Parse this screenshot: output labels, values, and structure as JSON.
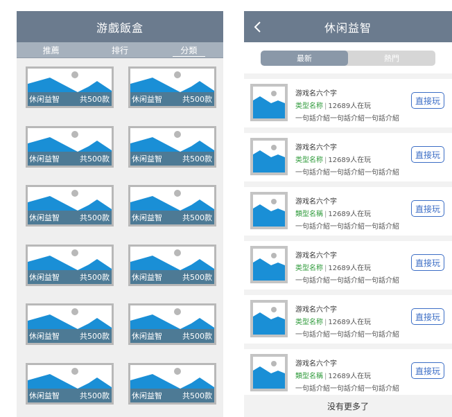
{
  "left": {
    "header_title": "游戲飯盒",
    "tabs": [
      {
        "label": "推薦",
        "active": false
      },
      {
        "label": "排行",
        "active": false
      },
      {
        "label": "分類",
        "active": true
      }
    ],
    "cards": [
      {
        "category": "休闲益智",
        "count": "共500款"
      },
      {
        "category": "休闲益智",
        "count": "共500款"
      },
      {
        "category": "休闲益智",
        "count": "共500款"
      },
      {
        "category": "休闲益智",
        "count": "共500款"
      },
      {
        "category": "休闲益智",
        "count": "共500款"
      },
      {
        "category": "休闲益智",
        "count": "共500款"
      },
      {
        "category": "休闲益智",
        "count": "共500款"
      },
      {
        "category": "休闲益智",
        "count": "共500款"
      },
      {
        "category": "休闲益智",
        "count": "共500款"
      },
      {
        "category": "休闲益智",
        "count": "共500款"
      },
      {
        "category": "休闲益智",
        "count": "共500款"
      },
      {
        "category": "休闲益智",
        "count": "共500款"
      }
    ],
    "card_icon": "image-placeholder-icon"
  },
  "right": {
    "header_title": "休闲益智",
    "back_icon": "chevron-left-icon",
    "segments": [
      {
        "label": "最新",
        "active": true
      },
      {
        "label": "熱門",
        "active": false
      }
    ],
    "items": [
      {
        "title": "游戏名六个字",
        "type": "类型名称",
        "players": "12689人在玩",
        "desc": "一句話介紹一句話介紹一句話介紹",
        "action": "直接玩"
      },
      {
        "title": "游戏名六个字",
        "type": "类型名称",
        "players": "12689人在玩",
        "desc": "一句話介紹一句話介紹一句話介紹",
        "action": "直接玩"
      },
      {
        "title": "游戏名六个字",
        "type": "類型名稱",
        "players": "12689人在玩",
        "desc": "一句話介紹一句話介紹一句話介紹",
        "action": "直接玩"
      },
      {
        "title": "游戏名六个字",
        "type": "类型名称",
        "players": "12689人在玩",
        "desc": "一句話介紹一句話介紹一句話介紹",
        "action": "直接玩"
      },
      {
        "title": "游戏名六个字",
        "type": "类型名称",
        "players": "12689人在玩",
        "desc": "一句話介紹一句話介紹一句話介紹",
        "action": "直接玩"
      },
      {
        "title": "游戏名六个字",
        "type": "類型名稱",
        "players": "12689人在玩",
        "desc": "一句話介紹一句話介紹一句話介紹",
        "action": "直接玩"
      }
    ],
    "footer_text": "没有更多了"
  },
  "colors": {
    "header_bg": "#6b7b8e",
    "tab_bg": "#a6b1bd",
    "image_blue": "#1a8fd6",
    "type_green": "#2e9a3a",
    "button_blue": "#3b6dc5"
  }
}
